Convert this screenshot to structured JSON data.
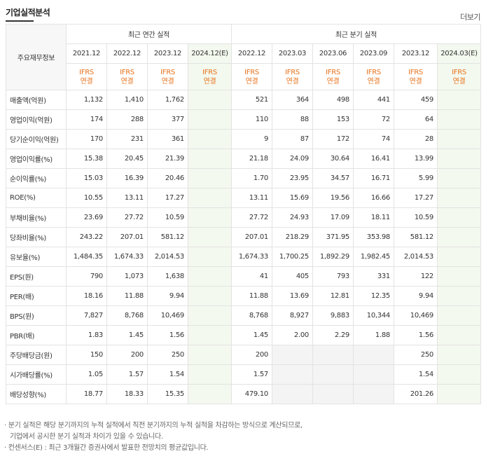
{
  "header": {
    "title": "기업실적분석",
    "more_label": "더보기"
  },
  "table": {
    "corner_label": "주요재무정보",
    "annual_group": "최근 연간 실적",
    "quarter_group": "최근 분기 실적",
    "annual_periods": [
      "2021.12",
      "2022.12",
      "2023.12",
      "2024.12(E)"
    ],
    "quarter_periods": [
      "2022.12",
      "2023.03",
      "2023.06",
      "2023.09",
      "2023.12",
      "2024.03(E)"
    ],
    "ifrs_line1": "IFRS",
    "ifrs_line2": "연결",
    "rows": [
      {
        "label": "매출액(억원)",
        "annual": [
          "1,132",
          "1,410",
          "1,762",
          ""
        ],
        "quarter": [
          "521",
          "364",
          "498",
          "441",
          "459",
          ""
        ]
      },
      {
        "label": "영업이익(억원)",
        "annual": [
          "174",
          "288",
          "377",
          ""
        ],
        "quarter": [
          "110",
          "88",
          "153",
          "72",
          "64",
          ""
        ]
      },
      {
        "label": "당기순이익(억원)",
        "annual": [
          "170",
          "231",
          "361",
          ""
        ],
        "quarter": [
          "9",
          "87",
          "172",
          "74",
          "28",
          ""
        ]
      },
      {
        "label": "영업이익률(%)",
        "annual": [
          "15.38",
          "20.45",
          "21.39",
          ""
        ],
        "quarter": [
          "21.18",
          "24.09",
          "30.64",
          "16.41",
          "13.99",
          ""
        ]
      },
      {
        "label": "순이익률(%)",
        "annual": [
          "15.03",
          "16.39",
          "20.46",
          ""
        ],
        "quarter": [
          "1.70",
          "23.95",
          "34.57",
          "16.71",
          "5.99",
          ""
        ]
      },
      {
        "label": "ROE(%)",
        "annual": [
          "10.55",
          "13.11",
          "17.27",
          ""
        ],
        "quarter": [
          "13.11",
          "15.69",
          "19.56",
          "16.66",
          "17.27",
          ""
        ]
      },
      {
        "label": "부채비율(%)",
        "annual": [
          "23.69",
          "27.72",
          "10.59",
          ""
        ],
        "quarter": [
          "27.72",
          "24.93",
          "17.09",
          "18.11",
          "10.59",
          ""
        ]
      },
      {
        "label": "당좌비율(%)",
        "annual": [
          "243.22",
          "207.01",
          "581.12",
          ""
        ],
        "quarter": [
          "207.01",
          "218.29",
          "371.95",
          "353.98",
          "581.12",
          ""
        ]
      },
      {
        "label": "유보율(%)",
        "annual": [
          "1,484.35",
          "1,674.33",
          "2,014.53",
          ""
        ],
        "quarter": [
          "1,674.33",
          "1,700.25",
          "1,892.29",
          "1,982.45",
          "2,014.53",
          ""
        ]
      },
      {
        "label": "EPS(원)",
        "annual": [
          "790",
          "1,073",
          "1,638",
          ""
        ],
        "quarter": [
          "41",
          "405",
          "793",
          "331",
          "122",
          ""
        ]
      },
      {
        "label": "PER(배)",
        "annual": [
          "18.16",
          "11.88",
          "9.94",
          ""
        ],
        "quarter": [
          "11.88",
          "13.69",
          "12.81",
          "12.35",
          "9.94",
          ""
        ]
      },
      {
        "label": "BPS(원)",
        "annual": [
          "7,827",
          "8,768",
          "10,469",
          ""
        ],
        "quarter": [
          "8,768",
          "8,927",
          "9,883",
          "10,344",
          "10,469",
          ""
        ]
      },
      {
        "label": "PBR(배)",
        "annual": [
          "1.83",
          "1.45",
          "1.56",
          ""
        ],
        "quarter": [
          "1.45",
          "2.00",
          "2.29",
          "1.88",
          "1.56",
          ""
        ]
      },
      {
        "label": "주당배당금(원)",
        "annual": [
          "150",
          "200",
          "250",
          ""
        ],
        "quarter": [
          "200",
          "",
          "",
          "",
          "250",
          ""
        ]
      },
      {
        "label": "시가배당률(%)",
        "annual": [
          "1.05",
          "1.57",
          "1.54",
          ""
        ],
        "quarter": [
          "1.57",
          "",
          "",
          "",
          "1.54",
          ""
        ]
      },
      {
        "label": "배당성향(%)",
        "annual": [
          "18.77",
          "18.33",
          "15.35",
          ""
        ],
        "quarter": [
          "479.10",
          "",
          "",
          "",
          "201.26",
          ""
        ]
      }
    ]
  },
  "notes": {
    "line1": "· 분기 실적은 해당 분기까지의 누적 실적에서 직전 분기까지의 누적 실적을 차감하는 방식으로 계산되므로,",
    "line2": "기업에서 공시한 분기 실적과 차이가 있을 수 있습니다.",
    "line3": "· 컨센서스(E) : 최근 3개월간 증권사에서 발표한 전망치의 평균값입니다."
  }
}
